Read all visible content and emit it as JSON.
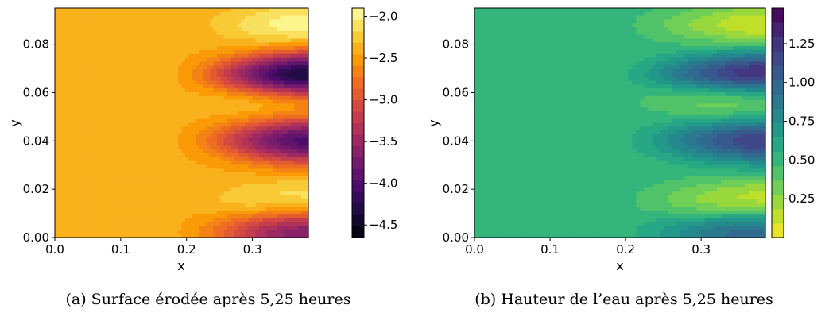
{
  "chart_data": [
    {
      "type": "heatmap",
      "caption": "(a) Surface érodée après 5,25 heures",
      "xlabel": "x",
      "ylabel": "y",
      "xlim": [
        0.0,
        0.385
      ],
      "ylim": [
        0.0,
        0.095
      ],
      "xticks": [
        0.0,
        0.1,
        0.2,
        0.3
      ],
      "xtick_labels": [
        "0.0",
        "0.1",
        "0.2",
        "0.3"
      ],
      "yticks": [
        0.0,
        0.02,
        0.04,
        0.06,
        0.08
      ],
      "ytick_labels": [
        "0.00",
        "0.02",
        "0.04",
        "0.06",
        "0.08"
      ],
      "colorbar": {
        "min": -4.65,
        "max": -1.9,
        "levels": 20,
        "ticks": [
          -2.0,
          -2.5,
          -3.0,
          -3.5,
          -4.0,
          -4.5
        ],
        "tick_labels": [
          "−2.0",
          "−2.5",
          "−3.0",
          "−3.5",
          "−4.0",
          "−4.5"
        ],
        "colormap": [
          "#000004",
          "#1b0c41",
          "#4a0c6b",
          "#781c6d",
          "#a52c60",
          "#cf4446",
          "#ed6925",
          "#fb9b06",
          "#f7d13d",
          "#fcffa4"
        ]
      },
      "base_value": -2.42,
      "ridges": [
        {
          "y": 0.088,
          "amp": 0.48
        },
        {
          "y": 0.067,
          "amp": -2.1
        },
        {
          "y": 0.058,
          "amp": 0.38
        },
        {
          "y": 0.04,
          "amp": -1.6
        },
        {
          "y": 0.015,
          "amp": 0.38
        },
        {
          "y": 0.002,
          "amp": -1.3
        }
      ]
    },
    {
      "type": "heatmap",
      "caption": "(b) Hauteur de l’eau après 5,25 heures",
      "xlabel": "x",
      "ylabel": "y",
      "xlim": [
        0.0,
        0.385
      ],
      "ylim": [
        0.0,
        0.095
      ],
      "xticks": [
        0.0,
        0.1,
        0.2,
        0.3
      ],
      "xtick_labels": [
        "0.0",
        "0.1",
        "0.2",
        "0.3"
      ],
      "yticks": [
        0.0,
        0.02,
        0.04,
        0.06,
        0.08
      ],
      "ytick_labels": [
        "0.00",
        "0.02",
        "0.04",
        "0.06",
        "0.08"
      ],
      "colorbar": {
        "min": 0.0,
        "max": 1.48,
        "levels": 16,
        "ticks": [
          0.25,
          0.5,
          0.75,
          1.0,
          1.25
        ],
        "tick_labels": [
          "0.25",
          "0.50",
          "0.75",
          "1.00",
          "1.25"
        ],
        "colormap": [
          "#fde725",
          "#b5de2b",
          "#6ece58",
          "#35b779",
          "#1f9e89",
          "#26828e",
          "#31688e",
          "#3e4989",
          "#482878",
          "#440154"
        ]
      },
      "base_value": 0.5,
      "ridges": [
        {
          "y": 0.088,
          "amp": -0.4
        },
        {
          "y": 0.067,
          "amp": 0.92
        },
        {
          "y": 0.058,
          "amp": -0.4
        },
        {
          "y": 0.04,
          "amp": 0.7
        },
        {
          "y": 0.015,
          "amp": -0.4
        },
        {
          "y": 0.002,
          "amp": 0.55
        }
      ]
    }
  ]
}
